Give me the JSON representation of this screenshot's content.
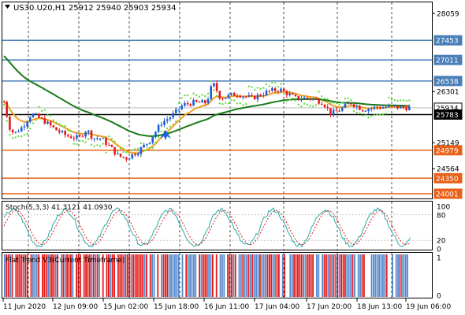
{
  "header": {
    "symbol_info": "US30.U20,H1  25912 25940 25903 25934"
  },
  "price_axis": {
    "labels": [
      "28059",
      "27453",
      "27011",
      "26538",
      "26301",
      "25934",
      "25783",
      "25149",
      "24979",
      "24564",
      "24350",
      "24001"
    ]
  },
  "levels": [
    {
      "price": 27453,
      "label": "27453",
      "color": "#4a7fb8"
    },
    {
      "price": 27011,
      "label": "27011",
      "color": "#4a7fb8"
    },
    {
      "price": 26538,
      "label": "26538",
      "color": "#4a7fb8"
    },
    {
      "price": 25783,
      "label": "25783",
      "color": "#000000"
    },
    {
      "price": 24979,
      "label": "24979",
      "color": "#e8601a"
    },
    {
      "price": 24350,
      "label": "24350",
      "color": "#e8601a"
    },
    {
      "price": 24001,
      "label": "24001",
      "color": "#e8601a"
    }
  ],
  "current_price": {
    "value": 25934,
    "label": "25934"
  },
  "stoch": {
    "title": "Stoch(5,3,3) 41.3121 41.0930",
    "levels": [
      "100",
      "80",
      "20",
      "0"
    ]
  },
  "flat_trend": {
    "title": "Flat Trend V3(Current Timeframe)",
    "levels": [
      "1",
      "0"
    ]
  },
  "time_axis": {
    "labels": [
      "11 Jun 2020",
      "12 Jun 09:00",
      "15 Jun 02:00",
      "15 Jun 18:00",
      "16 Jun 11:00",
      "17 Jun 04:00",
      "17 Jun 20:00",
      "18 Jun 13:00",
      "19 Jun 06:00"
    ]
  },
  "colors": {
    "bull": "#1a5fd6",
    "bear": "#e31a1a",
    "ma_fast": "#f0a020",
    "ma_slow": "#1a7a1a",
    "sar": "#66dd44",
    "stoch_main": "#2aa8a8",
    "stoch_signal": "#e31a1a",
    "arrow": "#1a5fd6"
  }
}
